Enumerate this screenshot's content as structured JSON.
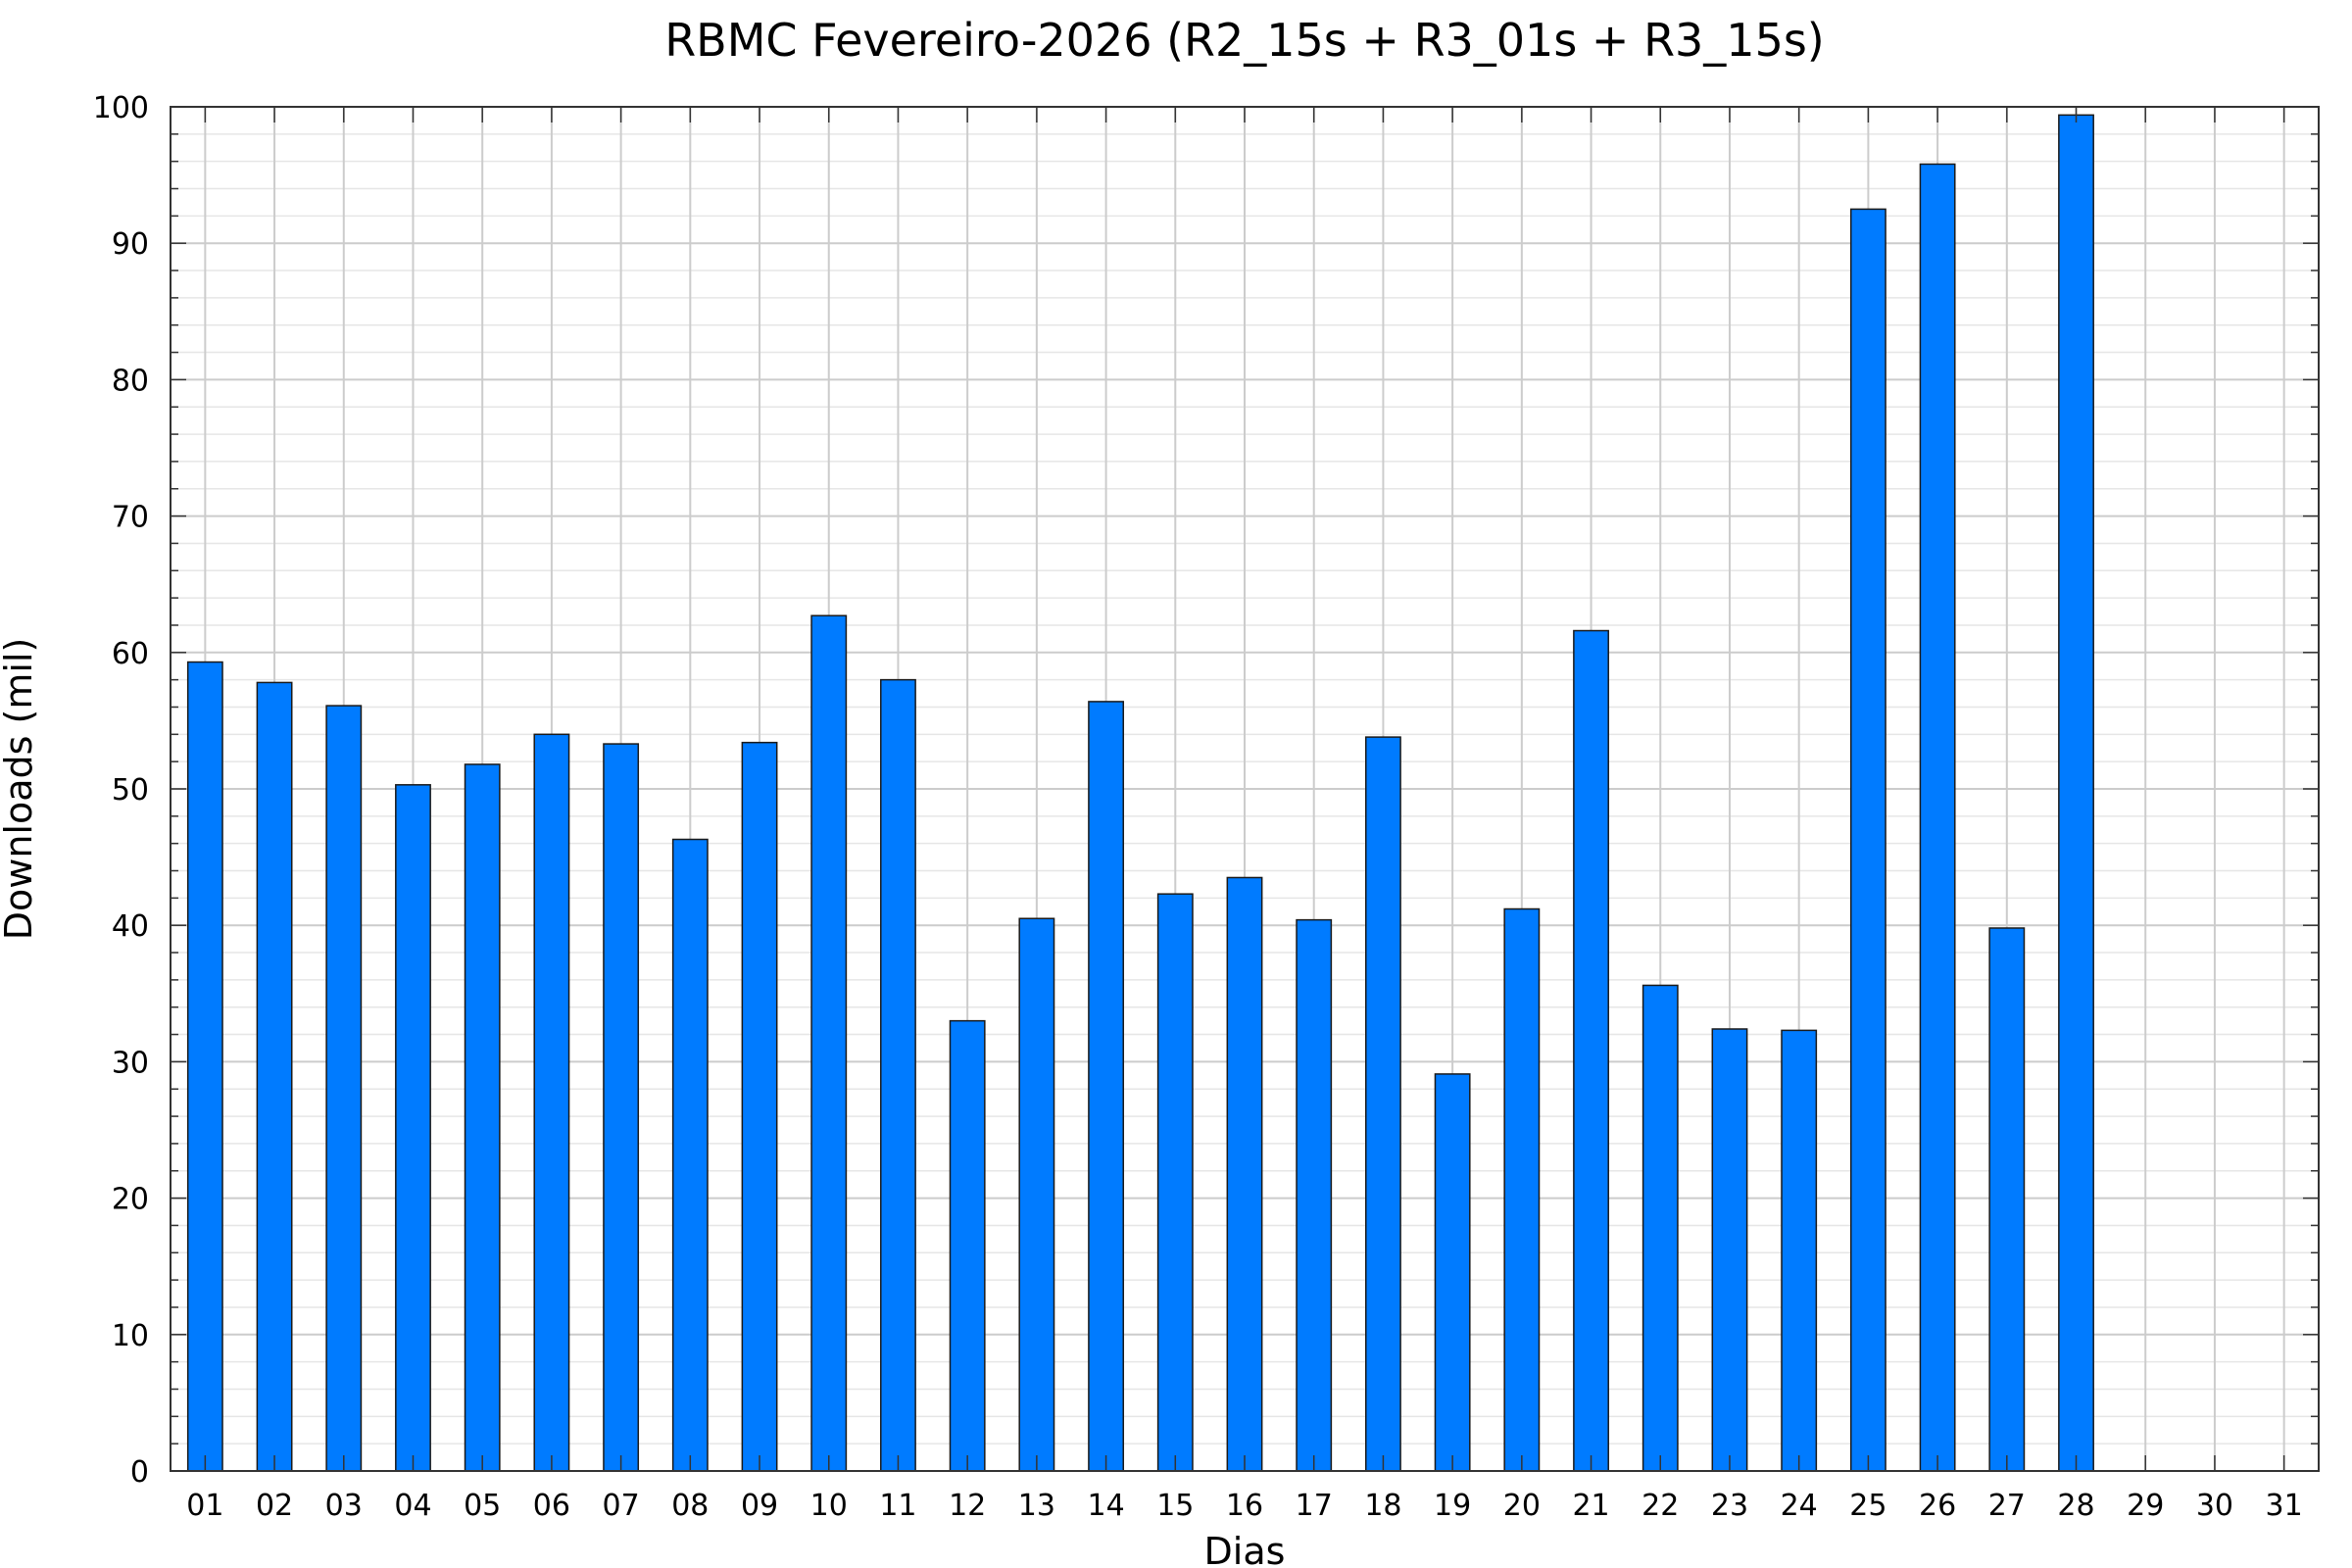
{
  "chart_data": {
    "type": "bar",
    "title": "RBMC Fevereiro-2026 (R2_15s + R3_01s + R3_15s)",
    "xlabel": "Dias",
    "ylabel": "Downloads (mil)",
    "ylim": [
      0,
      100
    ],
    "yticks": [
      "0",
      "10",
      "20",
      "30",
      "40",
      "50",
      "60",
      "70",
      "80",
      "90",
      "100"
    ],
    "grid": true,
    "categories": [
      "01",
      "02",
      "03",
      "04",
      "05",
      "06",
      "07",
      "08",
      "09",
      "10",
      "11",
      "12",
      "13",
      "14",
      "15",
      "16",
      "17",
      "18",
      "19",
      "20",
      "21",
      "22",
      "23",
      "24",
      "25",
      "26",
      "27",
      "28",
      "29",
      "30",
      "31"
    ],
    "values": [
      59.3,
      57.8,
      56.1,
      50.3,
      51.8,
      54.0,
      53.3,
      46.3,
      53.4,
      62.7,
      58.0,
      33.0,
      40.5,
      56.4,
      42.3,
      43.5,
      40.4,
      53.8,
      29.1,
      41.2,
      61.6,
      35.6,
      32.4,
      32.3,
      92.5,
      95.8,
      39.8,
      99.4,
      null,
      null,
      null
    ],
    "bar_color": "#007bff"
  }
}
